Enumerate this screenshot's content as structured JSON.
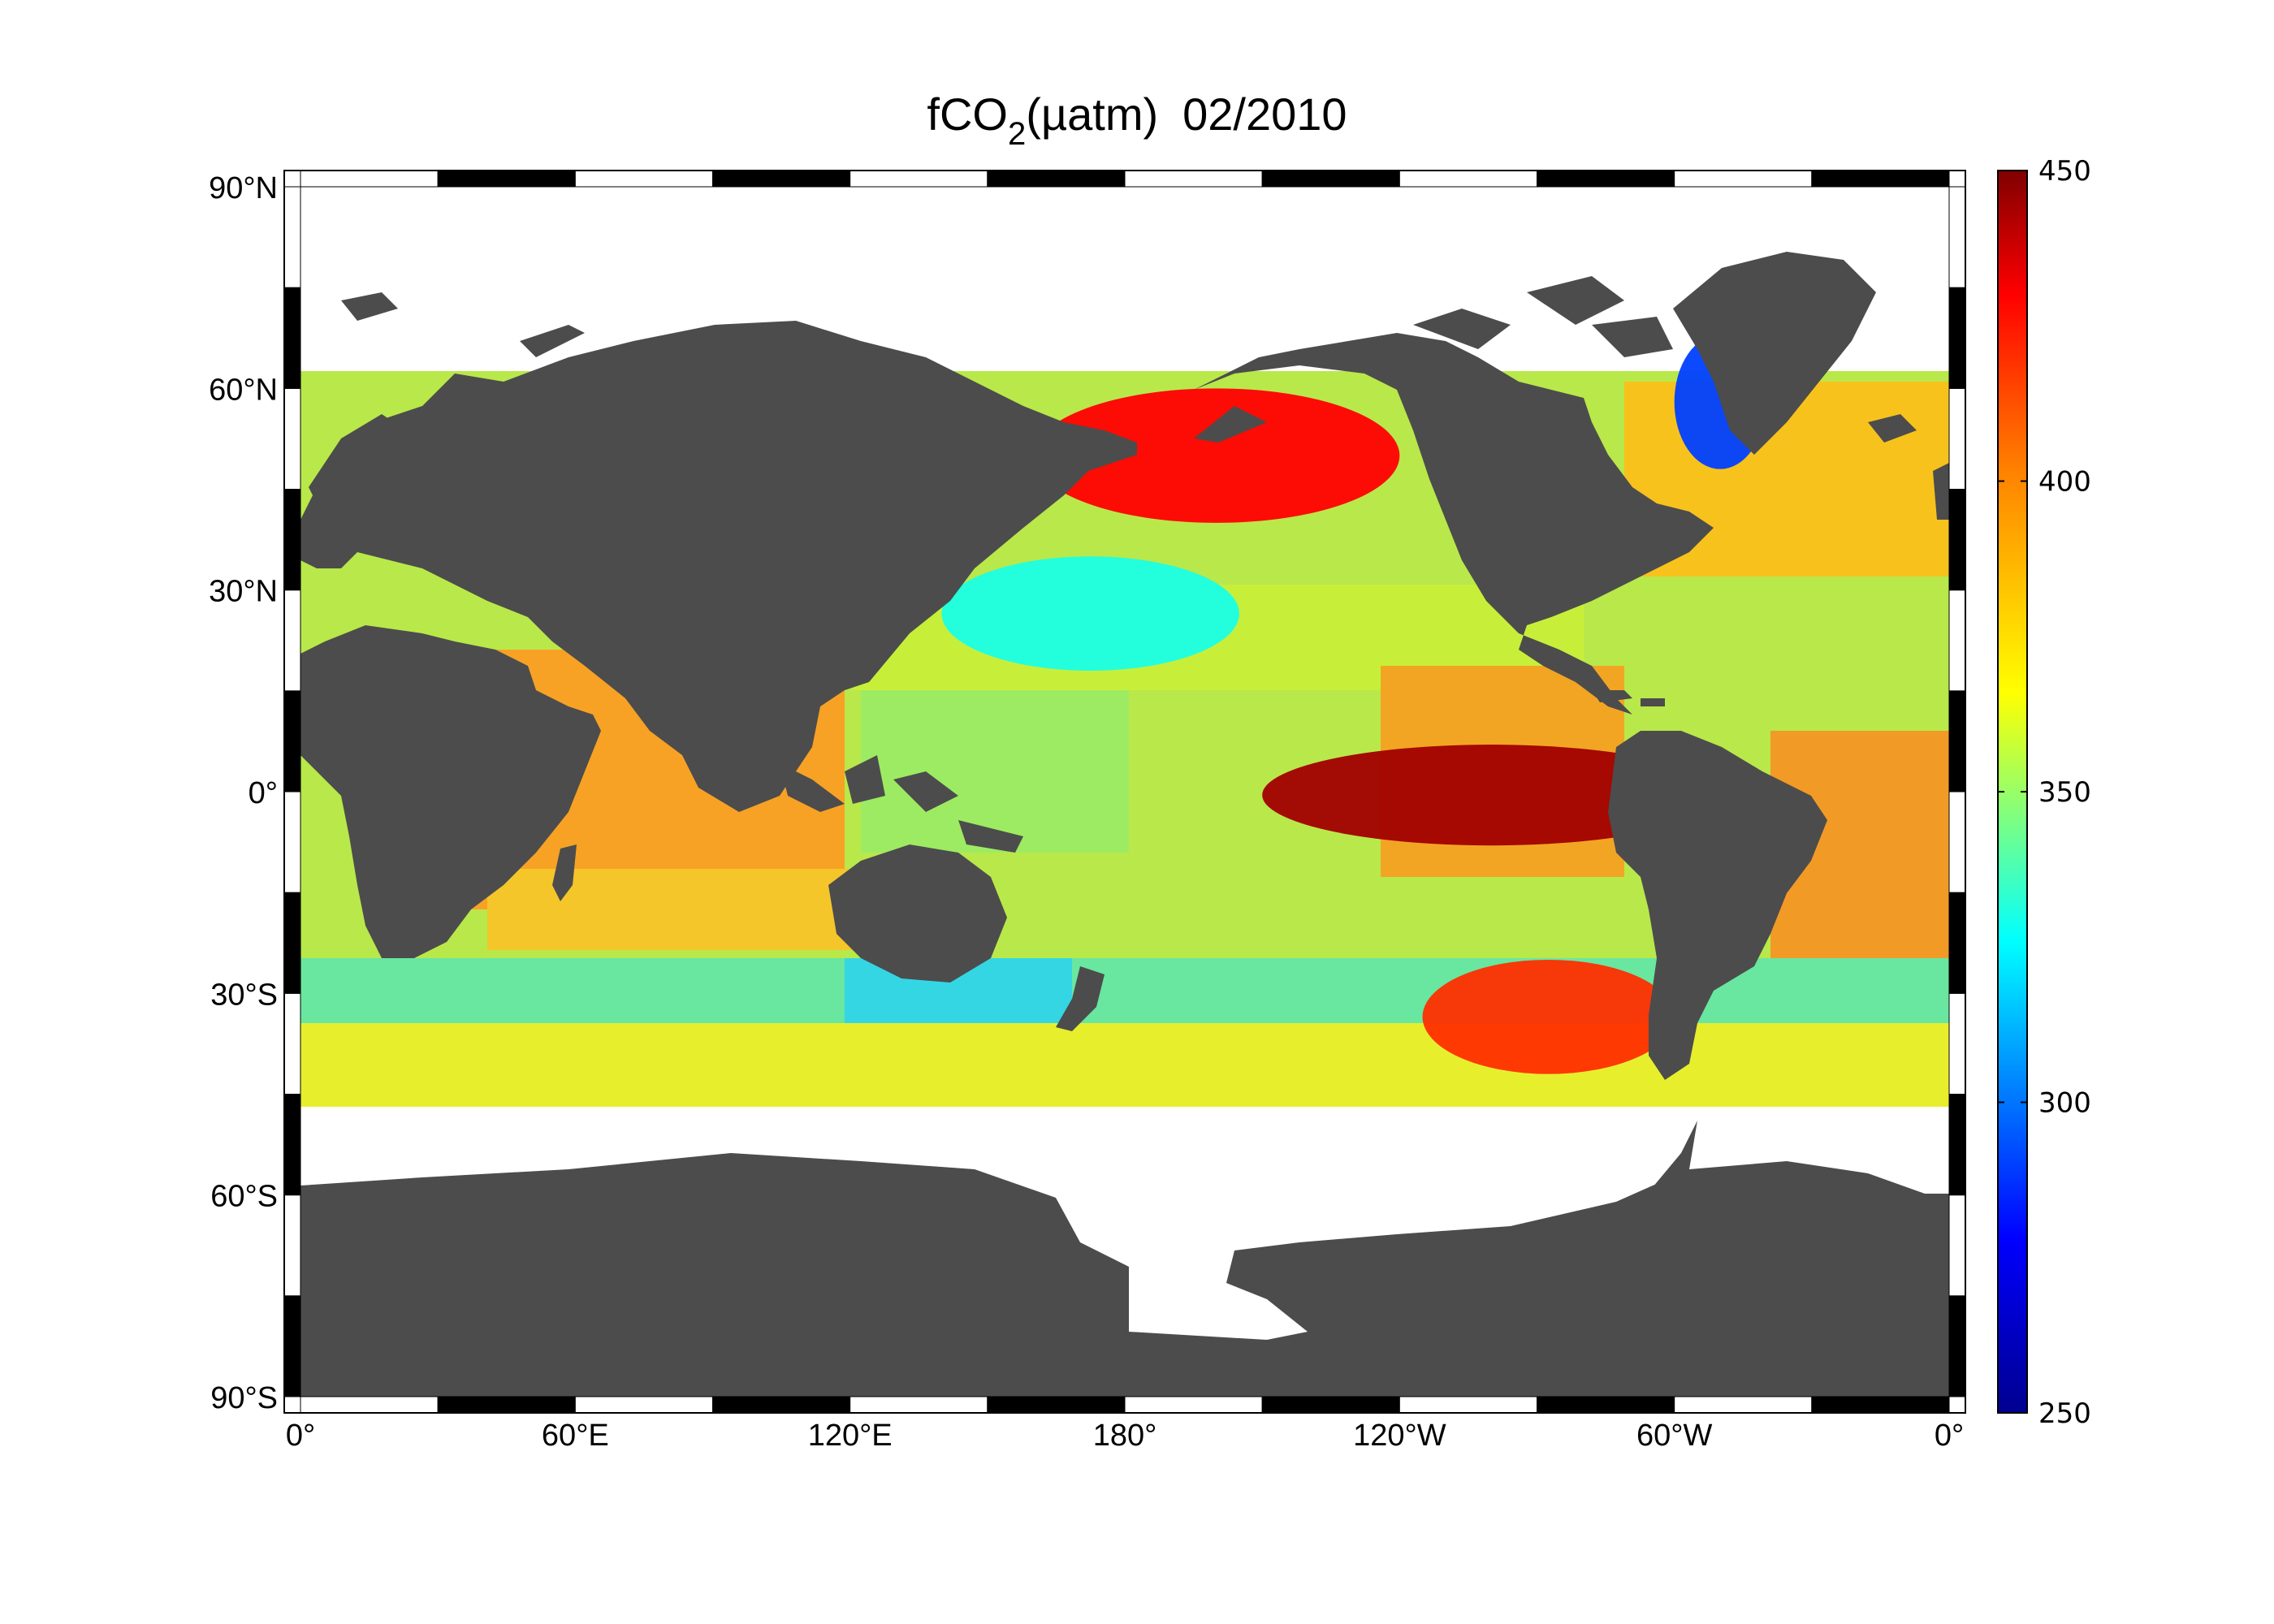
{
  "title": {
    "prefix": "fCO",
    "subscript": "2",
    "suffix": "(µatm)",
    "date": "02/2010"
  },
  "colors": {
    "land": "#4c4c4c",
    "no_data": "#ffffff",
    "frame_dark": "#000000",
    "frame_light": "#ffffff"
  },
  "map": {
    "projection": "equirectangular",
    "lon_range": [
      0,
      360
    ],
    "lat_range": [
      -90,
      90
    ],
    "data_lat_range": [
      -60,
      70
    ],
    "lon_ticks": [
      {
        "lon": 0,
        "label": "0°"
      },
      {
        "lon": 60,
        "label": "60°E"
      },
      {
        "lon": 120,
        "label": "120°E"
      },
      {
        "lon": 180,
        "label": "180°"
      },
      {
        "lon": 240,
        "label": "120°W"
      },
      {
        "lon": 300,
        "label": "60°W"
      },
      {
        "lon": 360,
        "label": "0°"
      }
    ],
    "lat_ticks": [
      {
        "lat": 90,
        "label": "90°N"
      },
      {
        "lat": 60,
        "label": "60°N"
      },
      {
        "lat": 30,
        "label": "30°N"
      },
      {
        "lat": 0,
        "label": "0°"
      },
      {
        "lat": -30,
        "label": "30°S"
      },
      {
        "lat": -60,
        "label": "60°S"
      },
      {
        "lat": -90,
        "label": "90°S"
      }
    ]
  },
  "colorbar": {
    "min": 250,
    "max": 450,
    "ticks": [
      "250",
      "300",
      "350",
      "400",
      "450"
    ],
    "stops": [
      "#00008f",
      "#0000ff",
      "#00ffff",
      "#ffff00",
      "#ff8000",
      "#ff0000",
      "#800000"
    ]
  },
  "anomalies": [
    {
      "name": "equatorial-pacific-high",
      "lon": [
        210,
        310
      ],
      "lat": [
        -8,
        7
      ],
      "value": 445
    },
    {
      "name": "north-pacific-high",
      "lon": [
        160,
        240
      ],
      "lat": [
        40,
        60
      ],
      "value": 430
    },
    {
      "name": "south-pacific-high",
      "lon": [
        245,
        300
      ],
      "lat": [
        -42,
        -25
      ],
      "value": 420
    },
    {
      "name": "north-pacific-low",
      "lon": [
        140,
        205
      ],
      "lat": [
        18,
        35
      ],
      "value": 330
    },
    {
      "name": "labrador-sea-low",
      "lon": [
        300,
        320
      ],
      "lat": [
        48,
        68
      ],
      "value": 290
    }
  ]
}
